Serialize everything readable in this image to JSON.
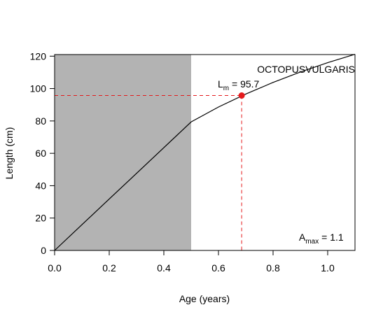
{
  "chart_data": {
    "type": "line",
    "title": "",
    "xlabel": "Age (years)",
    "ylabel": "Length (cm)",
    "xlim": [
      0,
      1.1
    ],
    "ylim": [
      0,
      121
    ],
    "x_ticks": [
      0.0,
      0.2,
      0.4,
      0.6,
      0.8,
      1.0
    ],
    "x_tick_labels": [
      "0.0",
      "0.2",
      "0.4",
      "0.6",
      "0.8",
      "1.0"
    ],
    "y_ticks": [
      0,
      20,
      40,
      60,
      80,
      100,
      120
    ],
    "y_tick_labels": [
      "0",
      "20",
      "40",
      "60",
      "80",
      "100",
      "120"
    ],
    "grid": false,
    "shaded_region": {
      "x_start": 0,
      "x_end": 0.5,
      "color": "#b3b3b3"
    },
    "series": [
      {
        "color": "#000000",
        "x": [
          0,
          0.1,
          0.2,
          0.3,
          0.4,
          0.5,
          0.6,
          0.7,
          0.8,
          0.9,
          1.0,
          1.1
        ],
        "y": [
          0,
          15.9,
          31.8,
          47.6,
          63.5,
          79.4,
          88.6,
          96.6,
          103.8,
          110.2,
          116.0,
          121.2
        ]
      }
    ],
    "maturity_point": {
      "x": 0.685,
      "y": 95.7,
      "color": "#e41a1c"
    },
    "annotations": {
      "species": "OCTOPUSVULGARIS",
      "lm_main": "L",
      "lm_sub": "m",
      "lm_value": " = 95.7",
      "amax_main": "A",
      "amax_sub": "max",
      "amax_value": " = 1.1"
    }
  }
}
